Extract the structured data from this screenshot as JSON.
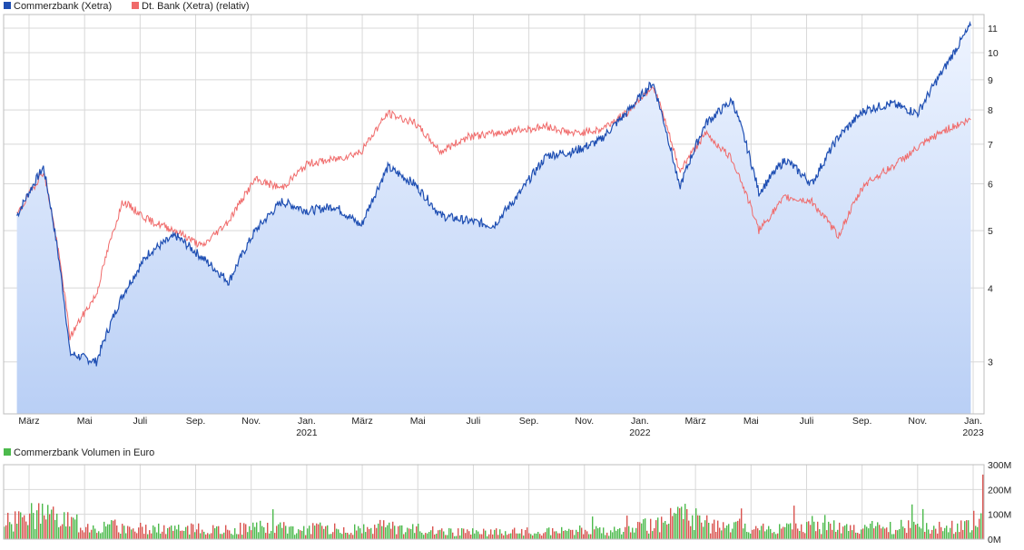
{
  "colors": {
    "primary_line": "#1f4fb3",
    "relative_line": "#f06a6a",
    "area_top": "#eef4ff",
    "area_bottom": "#b9cff5",
    "vol_up": "#4cba4c",
    "vol_down": "#d9534f",
    "grid": "#d8d8d8"
  },
  "legend_top": [
    {
      "label": "Commerzbank (Xetra)",
      "color": "#1f4fb3"
    },
    {
      "label": "Dt. Bank (Xetra) (relativ)",
      "color": "#f06a6a"
    }
  ],
  "legend_bottom": {
    "label": "Commerzbank Volumen in Euro",
    "color": "#4cba4c"
  },
  "x_labels": [
    {
      "label": "März"
    },
    {
      "label": "Mai"
    },
    {
      "label": "Juli"
    },
    {
      "label": "Sep."
    },
    {
      "label": "Nov."
    },
    {
      "label": "Jan.",
      "year": "2021"
    },
    {
      "label": "März"
    },
    {
      "label": "Mai"
    },
    {
      "label": "Juli"
    },
    {
      "label": "Sep."
    },
    {
      "label": "Nov."
    },
    {
      "label": "Jan.",
      "year": "2022"
    },
    {
      "label": "März"
    },
    {
      "label": "Mai"
    },
    {
      "label": "Juli"
    },
    {
      "label": "Sep."
    },
    {
      "label": "Nov."
    },
    {
      "label": "Jan.",
      "year": "2023"
    }
  ],
  "chart_data": [
    {
      "type": "line",
      "scale": "log",
      "y_ticks": [
        3,
        4,
        5,
        6,
        7,
        8,
        9,
        10,
        11
      ],
      "ylim": [
        2.45,
        11.6
      ],
      "grid": true,
      "legend_position": "top-left",
      "x": [
        "2020-02",
        "2020-03",
        "2020-04",
        "2020-05",
        "2020-06",
        "2020-07",
        "2020-08",
        "2020-09",
        "2020-10",
        "2020-11",
        "2020-12",
        "2021-01",
        "2021-02",
        "2021-03",
        "2021-04",
        "2021-05",
        "2021-06",
        "2021-07",
        "2021-08",
        "2021-09",
        "2021-10",
        "2021-11",
        "2021-12",
        "2022-01",
        "2022-02",
        "2022-03",
        "2022-04",
        "2022-05",
        "2022-06",
        "2022-07",
        "2022-08",
        "2022-09",
        "2022-10",
        "2022-11",
        "2022-12",
        "2023-01",
        "2023-02"
      ],
      "series": [
        {
          "name": "Commerzbank (Xetra)",
          "values": [
            5.3,
            6.4,
            3.1,
            3.0,
            3.9,
            4.6,
            4.9,
            4.5,
            4.1,
            5.0,
            5.6,
            5.4,
            5.5,
            5.1,
            6.4,
            6.0,
            5.3,
            5.2,
            5.1,
            5.8,
            6.7,
            6.8,
            7.1,
            7.9,
            8.9,
            5.9,
            7.6,
            8.3,
            5.8,
            6.6,
            6.0,
            7.2,
            8.0,
            8.2,
            7.9,
            9.4,
            11.1
          ]
        },
        {
          "name": "Dt. Bank (Xetra) (relativ)",
          "values": [
            5.3,
            6.3,
            3.3,
            3.9,
            5.6,
            5.2,
            5.0,
            4.7,
            5.2,
            6.1,
            5.9,
            6.5,
            6.6,
            6.8,
            7.9,
            7.6,
            6.8,
            7.2,
            7.3,
            7.4,
            7.5,
            7.3,
            7.4,
            7.9,
            8.8,
            6.3,
            7.3,
            6.6,
            5.0,
            5.7,
            5.6,
            4.9,
            6.0,
            6.4,
            6.9,
            7.4,
            7.7
          ]
        }
      ]
    },
    {
      "type": "bar",
      "title": "Commerzbank Volumen in Euro",
      "y_ticks": [
        "0M",
        "100M",
        "200M",
        "300M"
      ],
      "ylim": [
        0,
        300
      ],
      "unit": "M",
      "grid": true,
      "x": [
        "2020-02",
        "2020-03",
        "2020-04",
        "2020-05",
        "2020-06",
        "2020-07",
        "2020-08",
        "2020-09",
        "2020-10",
        "2020-11",
        "2020-12",
        "2021-01",
        "2021-02",
        "2021-03",
        "2021-04",
        "2021-05",
        "2021-06",
        "2021-07",
        "2021-08",
        "2021-09",
        "2021-10",
        "2021-11",
        "2021-12",
        "2022-01",
        "2022-02",
        "2022-03",
        "2022-04",
        "2022-05",
        "2022-06",
        "2022-07",
        "2022-08",
        "2022-09",
        "2022-10",
        "2022-11",
        "2022-12",
        "2023-01",
        "2023-02"
      ],
      "values": [
        70,
        110,
        90,
        60,
        55,
        50,
        45,
        45,
        40,
        55,
        50,
        45,
        50,
        40,
        60,
        45,
        35,
        30,
        30,
        35,
        35,
        40,
        35,
        45,
        70,
        110,
        60,
        55,
        50,
        55,
        50,
        55,
        50,
        55,
        45,
        55,
        85
      ]
    }
  ]
}
